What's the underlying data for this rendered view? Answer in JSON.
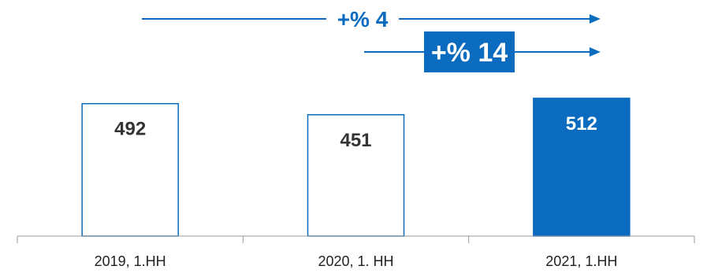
{
  "chart_data": {
    "type": "bar",
    "categories": [
      "2019, 1.HH",
      "2020, 1. HH",
      "2021, 1.HH"
    ],
    "values": [
      492,
      451,
      512
    ],
    "data_labels": [
      "492",
      "451",
      "512"
    ],
    "highlight_index": 2,
    "title": "",
    "xlabel": "",
    "ylabel": "",
    "ylim": [
      0,
      550
    ],
    "grid": false,
    "annotations": [
      {
        "text": "+% 4",
        "from": "2019, 1.HH",
        "to": "2021, 1.HH",
        "style": "plain"
      },
      {
        "text": "+% 14",
        "from": "2020, 1. HH",
        "to": "2021, 1.HH",
        "style": "boxed"
      }
    ]
  },
  "colors": {
    "accent": "#0a6bbf",
    "bar_outline": "#0a6bbf",
    "bar_fill_highlight": "#0a6bbf",
    "axis": "#999999",
    "label_dark": "#333333",
    "label_light": "#ffffff"
  }
}
